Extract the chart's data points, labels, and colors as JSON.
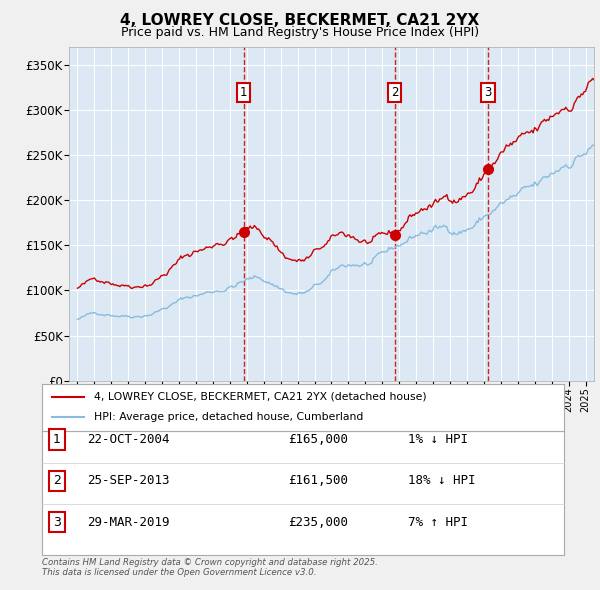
{
  "title": "4, LOWREY CLOSE, BECKERMET, CA21 2YX",
  "subtitle": "Price paid vs. HM Land Registry's House Price Index (HPI)",
  "legend_property": "4, LOWREY CLOSE, BECKERMET, CA21 2YX (detached house)",
  "legend_hpi": "HPI: Average price, detached house, Cumberland",
  "footer": "Contains HM Land Registry data © Crown copyright and database right 2025.\nThis data is licensed under the Open Government Licence v3.0.",
  "sales": [
    {
      "num": 1,
      "date": "22-OCT-2004",
      "price": 165000,
      "hpi_rel": "1% ↓ HPI",
      "x_year": 2004.81
    },
    {
      "num": 2,
      "date": "25-SEP-2013",
      "price": 161500,
      "hpi_rel": "18% ↓ HPI",
      "x_year": 2013.73
    },
    {
      "num": 3,
      "date": "29-MAR-2019",
      "price": 235000,
      "hpi_rel": "7% ↑ HPI",
      "x_year": 2019.24
    }
  ],
  "ylim": [
    0,
    370000
  ],
  "xlim_start": 1994.5,
  "xlim_end": 2025.5,
  "plot_bg": "#dce9f5",
  "grid_color": "#ffffff",
  "hpi_color": "#88bbdd",
  "property_color": "#cc0000",
  "sale_marker_color": "#cc0000",
  "dashed_line_color": "#cc0000",
  "box_color": "#cc0000",
  "fig_bg": "#f0f0f0",
  "ytick_labels": [
    "£0",
    "£50K",
    "£100K",
    "£150K",
    "£200K",
    "£250K",
    "£300K",
    "£350K"
  ],
  "ytick_values": [
    0,
    50000,
    100000,
    150000,
    200000,
    250000,
    300000,
    350000
  ],
  "table_rows": [
    {
      "num": "1",
      "date": "22-OCT-2004",
      "price": "£165,000",
      "rel": "1% ↓ HPI"
    },
    {
      "num": "2",
      "date": "25-SEP-2013",
      "price": "£161,500",
      "rel": "18% ↓ HPI"
    },
    {
      "num": "3",
      "date": "29-MAR-2019",
      "price": "£235,000",
      "rel": "7% ↑ HPI"
    }
  ]
}
